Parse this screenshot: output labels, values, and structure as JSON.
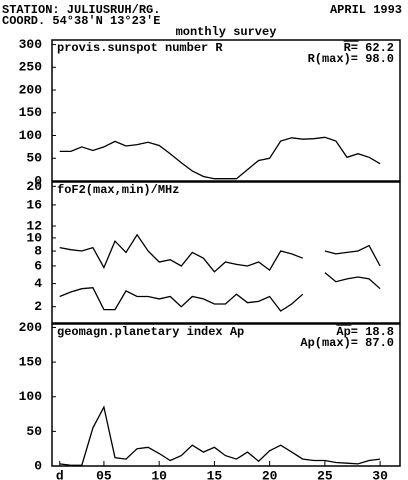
{
  "header": {
    "station": "STATION: JULIUSRUH/RG.",
    "date": "APRIL 1993",
    "coord": "COORD. 54°38'N 13°23'E",
    "subtitle": "monthly survey"
  },
  "chart_data": [
    {
      "type": "line",
      "title": "provis.sunspot number R",
      "stats": [
        "R= 62.2",
        "R(max)= 98.0"
      ],
      "x": [
        1,
        2,
        3,
        4,
        5,
        6,
        7,
        8,
        9,
        10,
        11,
        12,
        13,
        14,
        15,
        16,
        17,
        18,
        19,
        20,
        21,
        22,
        23,
        24,
        25,
        26,
        27,
        28,
        29,
        30
      ],
      "xlim": [
        0.3,
        31.8
      ],
      "series": [
        {
          "name": "R",
          "color": "#000000",
          "values": [
            65,
            65,
            75,
            67,
            75,
            87,
            77,
            80,
            85,
            78,
            60,
            40,
            22,
            10,
            5,
            5,
            5,
            25,
            45,
            50,
            88,
            95,
            92,
            93,
            96,
            88,
            52,
            60,
            52,
            38
          ]
        }
      ],
      "ylim": [
        0,
        310
      ],
      "yticks": [
        0,
        50,
        100,
        150,
        200,
        250,
        300
      ],
      "scale": "linear"
    },
    {
      "type": "line",
      "title": "foF2(max,min)/MHz",
      "x": [
        1,
        2,
        3,
        4,
        5,
        6,
        7,
        8,
        9,
        10,
        11,
        12,
        13,
        14,
        15,
        16,
        17,
        18,
        19,
        20,
        21,
        22,
        23,
        24,
        25,
        26,
        27,
        28,
        29,
        30
      ],
      "xlim": [
        0.3,
        31.8
      ],
      "series": [
        {
          "name": "max",
          "color": "#000000",
          "values": [
            8.5,
            8.2,
            8.0,
            8.5,
            5.8,
            9.5,
            7.8,
            10.5,
            8.0,
            6.5,
            6.8,
            6.0,
            7.8,
            7.0,
            5.3,
            6.5,
            6.2,
            6.0,
            6.5,
            5.5,
            8.0,
            7.6,
            7.0,
            null,
            8.0,
            7.6,
            7.8,
            8.0,
            8.8,
            6.0
          ]
        },
        {
          "name": "min",
          "color": "#000000",
          "values": [
            2.8,
            3.2,
            3.5,
            3.6,
            1.8,
            1.8,
            3.3,
            2.8,
            2.8,
            2.6,
            2.8,
            2.0,
            2.8,
            2.6,
            2.2,
            2.2,
            3.0,
            2.3,
            2.4,
            2.8,
            1.7,
            2.2,
            3.0,
            null,
            5.2,
            4.2,
            4.5,
            4.7,
            4.5,
            3.5
          ]
        }
      ],
      "ylim": [
        1,
        21
      ],
      "yticks": [
        2,
        4,
        6,
        8,
        10,
        12,
        16,
        20
      ],
      "scale": "sqrt"
    },
    {
      "type": "line",
      "title": "geomagn.planetary index Ap",
      "stats": [
        "Ap= 18.8",
        "Ap(max)= 87.0"
      ],
      "x": [
        1,
        2,
        3,
        4,
        5,
        6,
        7,
        8,
        9,
        10,
        11,
        12,
        13,
        14,
        15,
        16,
        17,
        18,
        19,
        20,
        21,
        22,
        23,
        24,
        25,
        26,
        27,
        28,
        29,
        30
      ],
      "xlim": [
        0.3,
        31.8
      ],
      "series": [
        {
          "name": "Ap",
          "color": "#000000",
          "values": [
            3,
            1,
            1,
            55,
            85,
            12,
            10,
            25,
            27,
            18,
            8,
            15,
            30,
            20,
            27,
            15,
            10,
            20,
            7,
            22,
            30,
            20,
            10,
            8,
            8,
            5,
            4,
            3,
            8,
            10
          ]
        }
      ],
      "ylim": [
        0,
        205
      ],
      "yticks": [
        0,
        50,
        100,
        150,
        200
      ],
      "scale": "linear",
      "xticks": [
        {
          "value": 1,
          "label": "d"
        },
        {
          "value": 5,
          "label": "05"
        },
        10,
        15,
        20,
        25,
        30
      ]
    }
  ]
}
